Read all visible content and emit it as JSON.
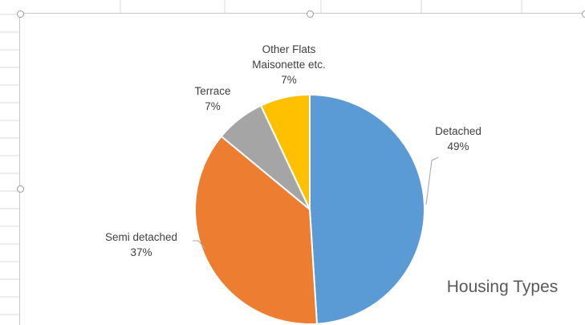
{
  "chart_data": {
    "type": "pie",
    "title": "Housing Types",
    "start_angle_deg": 0,
    "direction": "clockwise",
    "slices": [
      {
        "label": "Detached",
        "value": 49,
        "display": "49%",
        "color": "#5B9BD5"
      },
      {
        "label": "Semi detached",
        "value": 37,
        "display": "37%",
        "color": "#ED7D31"
      },
      {
        "label": "Terrace",
        "value": 7,
        "display": "7%",
        "color": "#A5A5A5"
      },
      {
        "label": "Other Flats Maisonette etc.",
        "label_lines": [
          "Other Flats",
          "Maisonette etc."
        ],
        "value": 7,
        "display": "7%",
        "color": "#FFC000"
      }
    ],
    "legend": "none",
    "data_labels": "outside with leader lines"
  }
}
